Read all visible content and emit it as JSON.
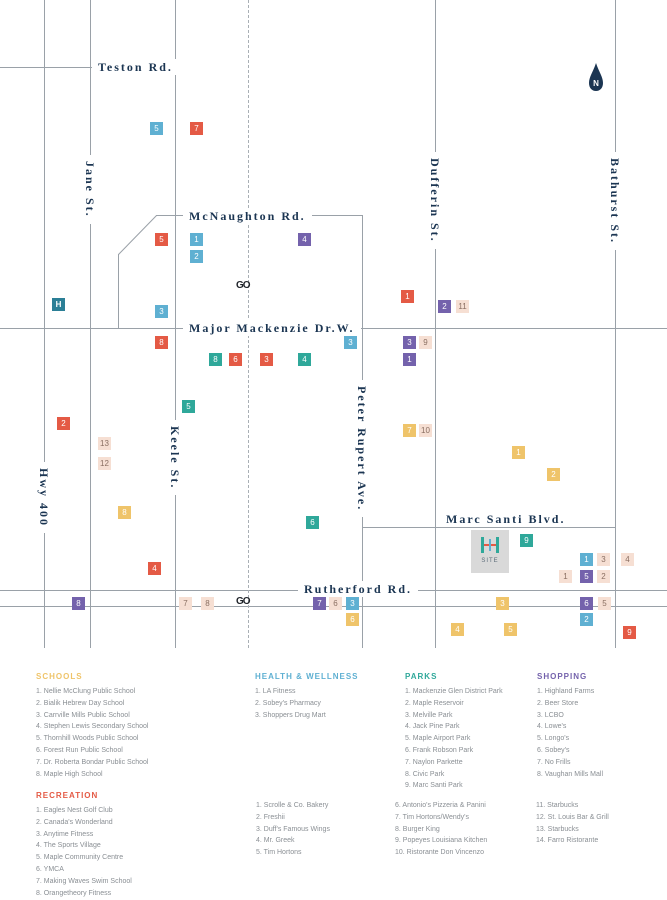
{
  "map": {
    "streets": {
      "teston": "Teston Rd.",
      "jane": "Jane St.",
      "mcnaughton": "McNaughton Rd.",
      "dufferin": "Dufferin St.",
      "bathurst": "Bathurst St.",
      "major_mackenzie": "Major Mackenzie Dr.W.",
      "keele": "Keele St.",
      "hwy400": "Hwy 400",
      "peter_rupert": "Peter Rupert Ave.",
      "marc_santi": "Marc Santi Blvd.",
      "rutherford": "Rutherford Rd."
    },
    "north_label": "N",
    "hospital_label": "H",
    "go_label": "GO",
    "site_label": "SITE",
    "markers": [
      {
        "cat": "health",
        "n": "5"
      },
      {
        "cat": "recreation",
        "n": "7"
      },
      {
        "cat": "recreation",
        "n": "5"
      },
      {
        "cat": "health",
        "n": "1"
      },
      {
        "cat": "shopping",
        "n": "4"
      },
      {
        "cat": "health",
        "n": "2"
      },
      {
        "cat": "recreation",
        "n": "1"
      },
      {
        "cat": "shopping",
        "n": "2"
      },
      {
        "cat": "dining",
        "n": "11"
      },
      {
        "cat": "health",
        "n": "3"
      },
      {
        "cat": "recreation",
        "n": "8"
      },
      {
        "cat": "health",
        "n": "3"
      },
      {
        "cat": "shopping",
        "n": "3"
      },
      {
        "cat": "dining",
        "n": "9"
      },
      {
        "cat": "parks",
        "n": "8"
      },
      {
        "cat": "recreation",
        "n": "6"
      },
      {
        "cat": "recreation",
        "n": "3"
      },
      {
        "cat": "parks",
        "n": "4"
      },
      {
        "cat": "shopping",
        "n": "1"
      },
      {
        "cat": "parks",
        "n": "5"
      },
      {
        "cat": "recreation",
        "n": "2"
      },
      {
        "cat": "schools",
        "n": "7"
      },
      {
        "cat": "dining",
        "n": "10"
      },
      {
        "cat": "dining",
        "n": "13"
      },
      {
        "cat": "schools",
        "n": "1"
      },
      {
        "cat": "dining",
        "n": "12"
      },
      {
        "cat": "schools",
        "n": "2"
      },
      {
        "cat": "schools",
        "n": "8"
      },
      {
        "cat": "parks",
        "n": "6"
      },
      {
        "cat": "parks",
        "n": "9"
      },
      {
        "cat": "health",
        "n": "1"
      },
      {
        "cat": "dining",
        "n": "3"
      },
      {
        "cat": "dining",
        "n": "4"
      },
      {
        "cat": "recreation",
        "n": "4"
      },
      {
        "cat": "dining",
        "n": "1"
      },
      {
        "cat": "shopping",
        "n": "5"
      },
      {
        "cat": "dining",
        "n": "2"
      },
      {
        "cat": "shopping",
        "n": "8"
      },
      {
        "cat": "dining",
        "n": "7"
      },
      {
        "cat": "dining",
        "n": "8"
      },
      {
        "cat": "shopping",
        "n": "7"
      },
      {
        "cat": "dining",
        "n": "6"
      },
      {
        "cat": "health",
        "n": "3"
      },
      {
        "cat": "schools",
        "n": "3"
      },
      {
        "cat": "shopping",
        "n": "6"
      },
      {
        "cat": "dining",
        "n": "5"
      },
      {
        "cat": "schools",
        "n": "6"
      },
      {
        "cat": "health",
        "n": "2"
      },
      {
        "cat": "schools",
        "n": "4"
      },
      {
        "cat": "schools",
        "n": "5"
      },
      {
        "cat": "recreation",
        "n": "9"
      }
    ]
  },
  "colors": {
    "schools": "#efc46a",
    "health": "#5fb0d2",
    "parks": "#2fa89a",
    "shopping": "#7462ac",
    "recreation": "#e45a45",
    "dining": "#f6dfd3",
    "road": "#9aa1a8",
    "street_text": "#1b3552"
  },
  "legend": {
    "schools": {
      "title": "SCHOOLS",
      "items": [
        "1.  Nellie McClung Public School",
        "2.  Bialik Hebrew Day School",
        "3.  Carrville Mills Public School",
        "4.  Stephen Lewis Secondary School",
        "5.  Thornhill Woods Public School",
        "6.  Forest Run Public School",
        "7.  Dr. Roberta Bondar Public School",
        "8.  Maple High School"
      ]
    },
    "health": {
      "title": "HEALTH & WELLNESS",
      "items": [
        "1.  LA Fitness",
        "2.  Sobey's Pharmacy",
        "3.  Shoppers Drug Mart"
      ]
    },
    "parks": {
      "title": "PARKS",
      "items": [
        "1.  Mackenzie Glen District Park",
        "2.  Maple Reservoir",
        "3.  Melville Park",
        "4.  Jack Pine Park",
        "5.  Maple Airport Park",
        "6.  Frank Robson Park",
        "7.  Naylon Parkette",
        "8.  Civic Park",
        "9.  Marc Santi Park"
      ]
    },
    "shopping": {
      "title": "SHOPPING",
      "items": [
        "1.  Highland Farms",
        "2.  Beer Store",
        "3.  LCBO",
        "4.  Lowe's",
        "5.  Longo's",
        "6.  Sobey's",
        "7.  No Frills",
        "8.  Vaughan Mills Mall"
      ]
    },
    "recreation": {
      "title": "RECREATION",
      "items": [
        "1.  Eagles Nest Golf Club",
        "2.  Canada's Wonderland",
        "3.  Anytime Fitness",
        "4.  The Sports Village",
        "5.  Maple Community Centre",
        "6.  YMCA",
        "7.  Making Waves Swim School",
        "8.  Orangetheory Fitness"
      ]
    },
    "dining": {
      "col1": [
        "1.  Scrolle & Co. Bakery",
        "2.  Freshii",
        "3.  Duff's Famous Wings",
        "4.  Mr. Greek",
        "5.  Tim Hortons"
      ],
      "col2": [
        "6.  Antonio's Pizzeria & Panini",
        "7.  Tim Hortons/Wendy's",
        "8.  Burger King",
        "9.  Popeyes Louisiana Kitchen",
        "10. Ristorante Don Vincenzo"
      ],
      "col3": [
        "11.  Starbucks",
        "12.  St. Louis Bar & Grill",
        "13.  Starbucks",
        "14.  Farro Ristorante"
      ]
    }
  }
}
